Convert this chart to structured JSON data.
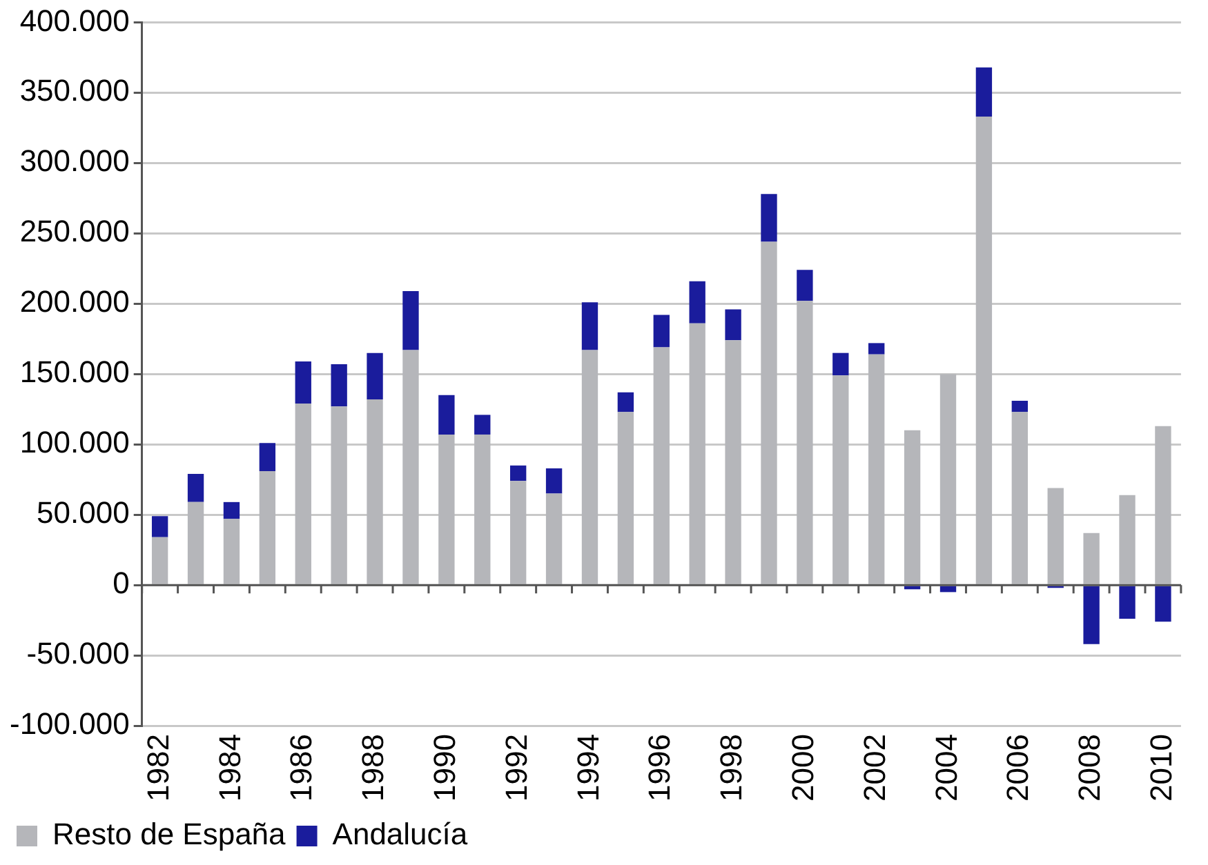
{
  "chart_data": {
    "type": "bar",
    "stacked": true,
    "categories": [
      "1982",
      null,
      "1984",
      null,
      "1986",
      null,
      "1988",
      null,
      "1990",
      null,
      "1992",
      null,
      "1994",
      null,
      "1996",
      null,
      "1998",
      null,
      "2000",
      null,
      "2002",
      null,
      "2004",
      null,
      "2006",
      null,
      "2008",
      null,
      "2010"
    ],
    "series": [
      {
        "name": "Resto de España",
        "color": "#b5b6ba",
        "values": [
          34000,
          59000,
          47000,
          81000,
          129000,
          127000,
          132000,
          167000,
          107000,
          107000,
          74000,
          65000,
          167000,
          123000,
          169000,
          186000,
          174000,
          244000,
          202000,
          149000,
          164000,
          110000,
          150000,
          333000,
          123000,
          69000,
          37000,
          64000,
          113000
        ]
      },
      {
        "name": "Andalucía",
        "color": "#1a1c9c",
        "values": [
          15000,
          20000,
          12000,
          20000,
          30000,
          30000,
          33000,
          42000,
          28000,
          14000,
          11000,
          18000,
          34000,
          14000,
          23000,
          30000,
          22000,
          34000,
          22000,
          16000,
          8000,
          -3000,
          -5000,
          35000,
          8000,
          -2000,
          -42000,
          -24000,
          -26000
        ]
      }
    ],
    "ylim": [
      -100000,
      400000
    ],
    "yticks": [
      {
        "value": -100000,
        "label": "-100.000"
      },
      {
        "value": -50000,
        "label": "-50.000"
      },
      {
        "value": 0,
        "label": "0"
      },
      {
        "value": 50000,
        "label": "50.000"
      },
      {
        "value": 100000,
        "label": "100.000"
      },
      {
        "value": 150000,
        "label": "150.000"
      },
      {
        "value": 200000,
        "label": "200.000"
      },
      {
        "value": 250000,
        "label": "250.000"
      },
      {
        "value": 300000,
        "label": "300.000"
      },
      {
        "value": 350000,
        "label": "350.000"
      },
      {
        "value": 400000,
        "label": "400.000"
      }
    ],
    "grid": "y",
    "legend": "bottom"
  }
}
